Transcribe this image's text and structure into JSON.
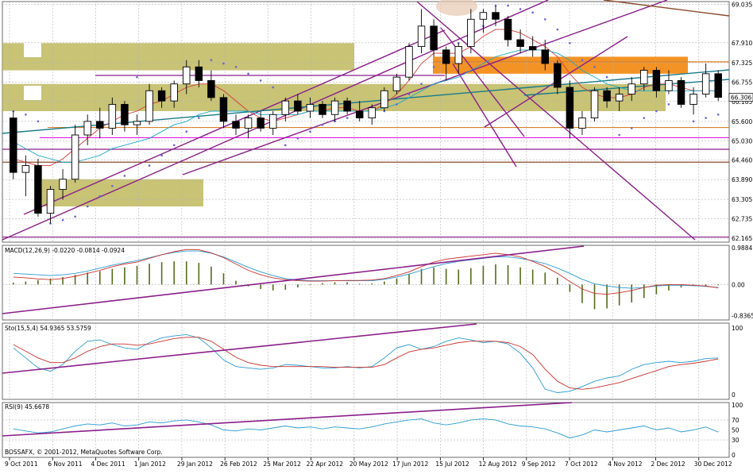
{
  "chart_data": [
    {
      "type": "candlestick",
      "panel": "price",
      "axis_labels": [
        "69.035",
        "67.910",
        "67.325",
        "66.755",
        "66.185",
        "65.600",
        "65.030",
        "64.460",
        "63.890",
        "63.305",
        "62.735",
        "62.165"
      ],
      "axis_values": [
        69.035,
        67.91,
        67.325,
        66.755,
        66.185,
        65.6,
        65.03,
        64.46,
        63.89,
        63.305,
        62.735,
        62.165
      ],
      "ylim": [
        62.05,
        69.12
      ],
      "current_price": "66.306",
      "x_labels": [
        "9 Oct 2011",
        "6 Nov 2011",
        "4 Dec 2011",
        "1 Jan 2012",
        "29 Jan 2012",
        "26 Feb 2012",
        "25 Mar 2012",
        "22 Apr 2012",
        "20 May 2012",
        "17 Jun 2012",
        "15 Jul 2012",
        "12 Aug 2012",
        "9 Sep 2012",
        "7 Oct 2012",
        "4 Nov 2012",
        "2 Dec 2012",
        "30 Dec 2012"
      ],
      "footer": "BOSSAFX, © 2001-2012, MetaQuotes Software Corp.",
      "candles": [
        [
          65.7,
          65.9,
          63.9,
          64.1
        ],
        [
          64.1,
          64.6,
          63.4,
          64.3
        ],
        [
          64.3,
          64.5,
          62.8,
          62.9
        ],
        [
          62.9,
          63.7,
          62.6,
          63.6
        ],
        [
          63.6,
          64.2,
          63.3,
          63.9
        ],
        [
          63.9,
          65.5,
          63.8,
          65.2
        ],
        [
          65.2,
          65.8,
          64.9,
          65.6
        ],
        [
          65.6,
          66.0,
          65.1,
          65.4
        ],
        [
          65.4,
          66.3,
          65.2,
          66.1
        ],
        [
          66.1,
          66.2,
          65.3,
          65.5
        ],
        [
          65.5,
          65.8,
          65.2,
          65.6
        ],
        [
          65.6,
          66.7,
          65.5,
          66.5
        ],
        [
          66.5,
          66.6,
          66.0,
          66.2
        ],
        [
          66.2,
          66.8,
          66.0,
          66.7
        ],
        [
          66.7,
          67.4,
          66.4,
          67.2
        ],
        [
          67.2,
          67.4,
          66.6,
          66.8
        ],
        [
          66.8,
          67.1,
          66.2,
          66.3
        ],
        [
          66.3,
          66.4,
          65.4,
          65.6
        ],
        [
          65.6,
          65.8,
          65.2,
          65.4
        ],
        [
          65.4,
          65.8,
          65.1,
          65.7
        ],
        [
          65.7,
          65.9,
          65.3,
          65.4
        ],
        [
          65.4,
          65.9,
          65.2,
          65.8
        ],
        [
          65.8,
          66.3,
          65.6,
          66.2
        ],
        [
          66.2,
          66.4,
          65.8,
          65.9
        ],
        [
          65.9,
          66.3,
          65.7,
          66.1
        ],
        [
          66.1,
          66.2,
          65.7,
          65.8
        ],
        [
          65.8,
          66.3,
          65.6,
          66.2
        ],
        [
          66.2,
          66.3,
          65.8,
          65.9
        ],
        [
          65.9,
          66.2,
          65.6,
          65.7
        ],
        [
          65.7,
          66.1,
          65.5,
          66.0
        ],
        [
          66.0,
          66.6,
          65.9,
          66.5
        ],
        [
          66.5,
          67.0,
          66.4,
          66.9
        ],
        [
          66.9,
          67.9,
          66.8,
          67.8
        ],
        [
          67.8,
          68.9,
          67.6,
          68.4
        ],
        [
          68.4,
          68.6,
          67.5,
          67.7
        ],
        [
          67.7,
          67.8,
          66.8,
          67.3
        ],
        [
          67.3,
          67.9,
          67.0,
          67.8
        ],
        [
          67.8,
          68.9,
          67.6,
          68.6
        ],
        [
          68.6,
          68.9,
          68.2,
          68.8
        ],
        [
          68.8,
          69.0,
          68.4,
          68.6
        ],
        [
          68.6,
          68.7,
          67.8,
          68.0
        ],
        [
          68.0,
          68.3,
          67.6,
          67.8
        ],
        [
          67.8,
          68.1,
          67.5,
          67.7
        ],
        [
          67.7,
          68.0,
          67.1,
          67.3
        ],
        [
          67.3,
          67.4,
          66.4,
          66.6
        ],
        [
          66.6,
          66.8,
          65.1,
          65.4
        ],
        [
          65.4,
          65.9,
          65.2,
          65.7
        ],
        [
          65.7,
          66.6,
          65.6,
          66.5
        ],
        [
          66.5,
          66.6,
          66.0,
          66.2
        ],
        [
          66.2,
          66.6,
          65.9,
          66.4
        ],
        [
          66.4,
          66.9,
          66.2,
          66.7
        ],
        [
          66.7,
          67.2,
          66.5,
          67.1
        ],
        [
          67.1,
          67.2,
          66.3,
          66.5
        ],
        [
          66.5,
          67.1,
          66.4,
          66.8
        ],
        [
          66.8,
          66.9,
          66.0,
          66.1
        ],
        [
          66.1,
          66.6,
          65.8,
          66.4
        ],
        [
          66.4,
          67.3,
          66.3,
          67.0
        ],
        [
          67.0,
          67.1,
          66.2,
          66.306
        ]
      ],
      "moving_averages": [
        {
          "color": "#d33a3a",
          "values": [
            64.5,
            64.4,
            64.3,
            64.3,
            64.5,
            64.8,
            65.1,
            65.4,
            65.6,
            65.8,
            65.9,
            66.1,
            66.2,
            66.4,
            66.6,
            66.7,
            66.7,
            66.5,
            66.2,
            65.9,
            65.7,
            65.6,
            65.7,
            65.8,
            65.9,
            65.9,
            66.0,
            66.0,
            65.9,
            65.9,
            66.1,
            66.4,
            66.8,
            67.3,
            67.6,
            67.6,
            67.6,
            67.8,
            68.1,
            68.3,
            68.3,
            68.2,
            68.0,
            67.8,
            67.5,
            67.0,
            66.6,
            66.4,
            66.3,
            66.3,
            66.4,
            66.6,
            66.7,
            66.7,
            66.6,
            66.5,
            66.5,
            66.5
          ]
        },
        {
          "color": "#19a8c8",
          "values": [
            65.0,
            64.8,
            64.6,
            64.5,
            64.4,
            64.4,
            64.5,
            64.6,
            64.8,
            64.9,
            65.0,
            65.1,
            65.3,
            65.5,
            65.6,
            65.8,
            65.9,
            65.9,
            65.9,
            65.9,
            65.8,
            65.8,
            65.8,
            65.8,
            65.9,
            65.9,
            65.9,
            65.9,
            65.9,
            65.9,
            66.0,
            66.1,
            66.3,
            66.5,
            66.7,
            66.8,
            66.9,
            67.1,
            67.3,
            67.5,
            67.6,
            67.7,
            67.7,
            67.7,
            67.6,
            67.4,
            67.1,
            66.9,
            66.7,
            66.6,
            66.5,
            66.5,
            66.5,
            66.5,
            66.5,
            66.5,
            66.5,
            66.5
          ]
        }
      ],
      "parabolic_sar": [
        65.9,
        65.8,
        65.6,
        62.6,
        62.7,
        62.8,
        63.1,
        63.4,
        63.7,
        64.0,
        66.9,
        64.3,
        64.6,
        64.9,
        65.3,
        65.7,
        67.4,
        67.3,
        67.2,
        67.0,
        66.8,
        66.6,
        64.9,
        65.1,
        65.3,
        65.5,
        65.6,
        65.7,
        65.8,
        65.8,
        65.9,
        66.1,
        66.4,
        66.7,
        67.2,
        67.6,
        67.9,
        68.1,
        68.4,
        69.0,
        69.0,
        68.9,
        68.8,
        68.6,
        68.3,
        67.9,
        67.4,
        67.2,
        66.9,
        65.2,
        65.4,
        65.7,
        65.9,
        66.1,
        66.2,
        65.6,
        65.7,
        65.8
      ],
      "zones": [
        {
          "label": "",
          "from": 67.0,
          "to": 67.5,
          "color": "#f28a14"
        },
        {
          "label": "",
          "from": 65.9,
          "to": 66.7,
          "color": "#b9b24e"
        },
        {
          "label": "",
          "from": 63.1,
          "to": 63.9,
          "color": "#b9b24e"
        },
        {
          "label": "",
          "from": 67.1,
          "to": 67.9,
          "color": "#b9b24e"
        }
      ],
      "horizontal_levels": [
        {
          "value": 67.35,
          "color": "#d98027"
        },
        {
          "value": 65.42,
          "color": "#d98027"
        },
        {
          "value": 65.12,
          "color": "#e21ce2"
        },
        {
          "value": 64.78,
          "color": "#8a1e8a"
        },
        {
          "value": 64.4,
          "color": "#8b4a2b"
        },
        {
          "value": 62.2,
          "color": "#8a1e8a"
        },
        {
          "value": 66.95,
          "color": "#8a1e8a"
        }
      ]
    },
    {
      "type": "histogram",
      "panel": "macd",
      "title": "MACD(12,26,9) -0.0220 -0.0814 -0.0924",
      "axis_labels": [
        "0.9884",
        "0.00",
        "-0.8365"
      ],
      "axis_values": [
        0.9884,
        0.0,
        -0.8365
      ],
      "ylim": [
        -0.95,
        1.05
      ],
      "histogram": [
        0.05,
        0.08,
        0.12,
        0.16,
        0.2,
        0.26,
        0.32,
        0.36,
        0.42,
        0.46,
        0.5,
        0.56,
        0.6,
        0.62,
        0.62,
        0.58,
        0.48,
        0.3,
        0.1,
        -0.05,
        -0.12,
        -0.16,
        -0.14,
        -0.08,
        -0.02,
        0.04,
        0.06,
        0.06,
        0.02,
        0.03,
        0.08,
        0.16,
        0.28,
        0.42,
        0.46,
        0.42,
        0.4,
        0.44,
        0.5,
        0.54,
        0.52,
        0.46,
        0.4,
        0.32,
        0.18,
        -0.2,
        -0.5,
        -0.66,
        -0.64,
        -0.56,
        -0.48,
        -0.36,
        -0.26,
        -0.16,
        -0.08,
        -0.04,
        -0.04,
        -0.02
      ],
      "signal": [
        0.2,
        0.18,
        0.15,
        0.13,
        0.16,
        0.22,
        0.3,
        0.38,
        0.48,
        0.55,
        0.6,
        0.7,
        0.8,
        0.88,
        0.94,
        0.93,
        0.85,
        0.72,
        0.55,
        0.38,
        0.26,
        0.18,
        0.13,
        0.1,
        0.09,
        0.09,
        0.1,
        0.11,
        0.11,
        0.12,
        0.16,
        0.24,
        0.34,
        0.48,
        0.6,
        0.68,
        0.72,
        0.76,
        0.8,
        0.84,
        0.8,
        0.74,
        0.62,
        0.48,
        0.3,
        0.08,
        -0.12,
        -0.24,
        -0.26,
        -0.22,
        -0.16,
        -0.08,
        -0.02,
        0.0,
        0.0,
        -0.02,
        -0.04,
        -0.09
      ],
      "macd_line": [
        0.3,
        0.28,
        0.26,
        0.24,
        0.26,
        0.3,
        0.36,
        0.44,
        0.52,
        0.58,
        0.64,
        0.72,
        0.8,
        0.86,
        0.9,
        0.9,
        0.84,
        0.74,
        0.6,
        0.46,
        0.34,
        0.24,
        0.16,
        0.12,
        0.1,
        0.1,
        0.1,
        0.1,
        0.1,
        0.1,
        0.14,
        0.2,
        0.28,
        0.38,
        0.48,
        0.56,
        0.62,
        0.66,
        0.7,
        0.74,
        0.74,
        0.7,
        0.64,
        0.56,
        0.44,
        0.3,
        0.14,
        0.02,
        -0.04,
        -0.08,
        -0.1,
        -0.08,
        -0.04,
        -0.02,
        -0.02,
        -0.03,
        -0.05,
        -0.08
      ]
    },
    {
      "type": "line",
      "panel": "stochastic",
      "title": "Sto(15,5,4) 54.9365 53.5759",
      "axis_labels": [
        "100",
        "0"
      ],
      "axis_values": [
        100,
        0
      ],
      "ylim": [
        0,
        100
      ],
      "series": [
        {
          "color": "#2a9bd1",
          "values": [
            70,
            55,
            40,
            35,
            45,
            65,
            80,
            82,
            75,
            70,
            68,
            78,
            85,
            88,
            90,
            85,
            70,
            52,
            42,
            40,
            38,
            40,
            45,
            44,
            42,
            40,
            40,
            42,
            40,
            42,
            55,
            70,
            75,
            68,
            72,
            80,
            85,
            82,
            78,
            80,
            76,
            62,
            40,
            8,
            3,
            5,
            12,
            20,
            25,
            28,
            38,
            45,
            48,
            50,
            48,
            50,
            54,
            55
          ]
        },
        {
          "color": "#c8322e",
          "values": [
            75,
            65,
            55,
            48,
            48,
            55,
            65,
            72,
            76,
            76,
            74,
            76,
            80,
            84,
            86,
            86,
            80,
            68,
            56,
            48,
            44,
            42,
            42,
            42,
            42,
            42,
            41,
            41,
            41,
            41,
            45,
            55,
            64,
            68,
            70,
            74,
            78,
            80,
            80,
            80,
            78,
            72,
            60,
            38,
            20,
            10,
            8,
            10,
            14,
            18,
            24,
            30,
            36,
            42,
            45,
            47,
            50,
            53.6
          ]
        }
      ]
    },
    {
      "type": "line",
      "panel": "rsi",
      "title": "RSI(9) 45.6678",
      "axis_labels": [
        "100",
        "70",
        "50",
        "30",
        "0"
      ],
      "axis_values": [
        100,
        70,
        50,
        30,
        0
      ],
      "ylim": [
        0,
        100
      ],
      "series": [
        {
          "color": "#2a9bd1",
          "values": [
            52,
            48,
            44,
            46,
            52,
            58,
            62,
            60,
            64,
            58,
            60,
            66,
            64,
            68,
            70,
            66,
            60,
            50,
            48,
            52,
            50,
            54,
            58,
            54,
            56,
            52,
            56,
            54,
            52,
            56,
            62,
            66,
            70,
            72,
            64,
            60,
            64,
            70,
            72,
            70,
            62,
            58,
            56,
            52,
            44,
            34,
            40,
            50,
            46,
            50,
            54,
            58,
            50,
            54,
            46,
            50,
            56,
            45.7
          ]
        }
      ]
    }
  ]
}
